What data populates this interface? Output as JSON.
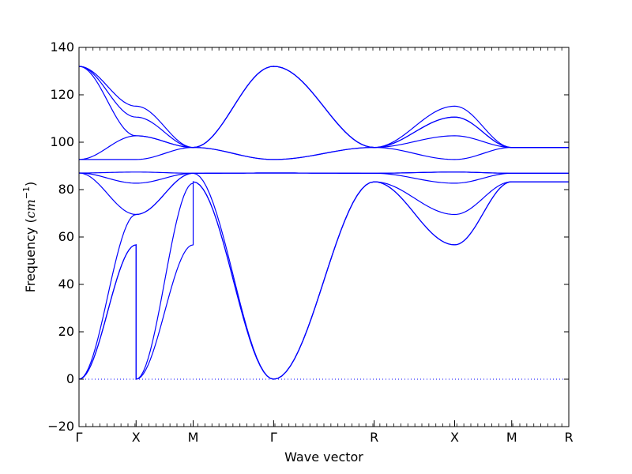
{
  "chart_data": {
    "type": "line",
    "xlabel": "Wave vector",
    "ylabel": {
      "text": "Frequency (",
      "unit": "cm",
      "exponent": "−1",
      "close": ")"
    },
    "ylim": [
      -20,
      140
    ],
    "xlim": [
      0,
      7.55
    ],
    "yticks": [
      -20,
      0,
      20,
      40,
      60,
      80,
      100,
      120,
      140
    ],
    "ytick_labels": [
      "−20",
      "0",
      "20",
      "40",
      "60",
      "80",
      "100",
      "120",
      "140"
    ],
    "high_symmetry_points": [
      {
        "label": "Γ",
        "x": 0
      },
      {
        "label": "X",
        "x": 0.88
      },
      {
        "label": "M",
        "x": 1.76
      },
      {
        "label": "Γ",
        "x": 3.0
      },
      {
        "label": "R",
        "x": 4.55
      },
      {
        "label": "X",
        "x": 5.79
      },
      {
        "label": "M",
        "x": 6.67
      },
      {
        "label": "R",
        "x": 7.55
      }
    ],
    "zero_line": {
      "y": 0,
      "style": "dotted"
    },
    "line_color": "#0000ff",
    "segment_width_units": {
      "G-X": 0.88,
      "X-M": 0.88,
      "M-G": 1.24,
      "G-R": 1.55,
      "R-X": 1.24,
      "X-M2": 0.88,
      "M-R": 0.88
    },
    "series": [
      {
        "segments": [
          [
            0,
            56.7
          ],
          [
            0,
            82.7
          ],
          [
            83.3,
            0
          ],
          [
            0,
            83.3
          ],
          [
            83.3,
            56.7
          ],
          [
            56.7,
            83.3
          ],
          [
            83.3,
            83.3
          ]
        ]
      },
      {
        "segments": [
          [
            0,
            56.7
          ],
          [
            0,
            56.7
          ],
          [
            83.3,
            0
          ],
          [
            0,
            83.3
          ],
          [
            83.3,
            56.7
          ],
          [
            56.7,
            83.3
          ],
          [
            83.3,
            83.3
          ]
        ]
      },
      {
        "segments": [
          [
            0,
            69.5
          ],
          [
            69.5,
            86.9
          ],
          [
            86.9,
            0
          ],
          [
            0,
            83.3
          ],
          [
            83.3,
            69.5
          ],
          [
            69.5,
            83.3
          ],
          [
            83.3,
            83.3
          ]
        ]
      },
      {
        "segments": [
          [
            87.0,
            69.5
          ],
          [
            69.5,
            86.9
          ],
          [
            86.9,
            87.0
          ],
          [
            87.0,
            86.9
          ],
          [
            86.9,
            87.4
          ],
          [
            87.4,
            86.9
          ],
          [
            86.9,
            86.9
          ]
        ]
      },
      {
        "segments": [
          [
            87.0,
            87.4
          ],
          [
            87.4,
            86.9
          ],
          [
            86.9,
            87.0
          ],
          [
            87.0,
            86.9
          ],
          [
            86.9,
            82.7
          ],
          [
            82.7,
            86.9
          ],
          [
            86.9,
            86.9
          ]
        ]
      },
      {
        "segments": [
          [
            87.0,
            82.7
          ],
          [
            82.7,
            86.9
          ],
          [
            86.9,
            87.0
          ],
          [
            87.0,
            86.9
          ],
          [
            86.9,
            87.4
          ],
          [
            87.4,
            86.9
          ],
          [
            86.9,
            86.9
          ]
        ]
      },
      {
        "segments": [
          [
            92.7,
            92.7
          ],
          [
            92.7,
            97.8
          ],
          [
            97.8,
            92.7
          ],
          [
            92.7,
            97.8
          ],
          [
            97.8,
            92.7
          ],
          [
            92.7,
            97.8
          ],
          [
            97.8,
            97.8
          ]
        ]
      },
      {
        "segments": [
          [
            92.7,
            102.7
          ],
          [
            102.7,
            97.8
          ],
          [
            97.8,
            92.7
          ],
          [
            92.7,
            97.8
          ],
          [
            97.8,
            102.7
          ],
          [
            102.7,
            97.8
          ],
          [
            97.8,
            97.8
          ]
        ]
      },
      {
        "segments": [
          [
            132.0,
            102.7
          ],
          [
            102.7,
            97.8
          ],
          [
            97.8,
            132.0
          ],
          [
            132.0,
            97.8
          ],
          [
            97.8,
            110.6
          ],
          [
            110.6,
            97.8
          ],
          [
            97.8,
            97.8
          ]
        ]
      },
      {
        "segments": [
          [
            132.0,
            110.6
          ],
          [
            110.6,
            97.8
          ],
          [
            97.8,
            132.0
          ],
          [
            132.0,
            97.8
          ],
          [
            97.8,
            110.6
          ],
          [
            110.6,
            97.8
          ],
          [
            97.8,
            97.8
          ]
        ]
      },
      {
        "segments": [
          [
            132.0,
            115.2
          ],
          [
            115.2,
            97.8
          ],
          [
            97.8,
            132.0
          ],
          [
            132.0,
            97.8
          ],
          [
            97.8,
            115.2
          ],
          [
            115.2,
            97.8
          ],
          [
            97.8,
            97.8
          ]
        ]
      }
    ]
  }
}
